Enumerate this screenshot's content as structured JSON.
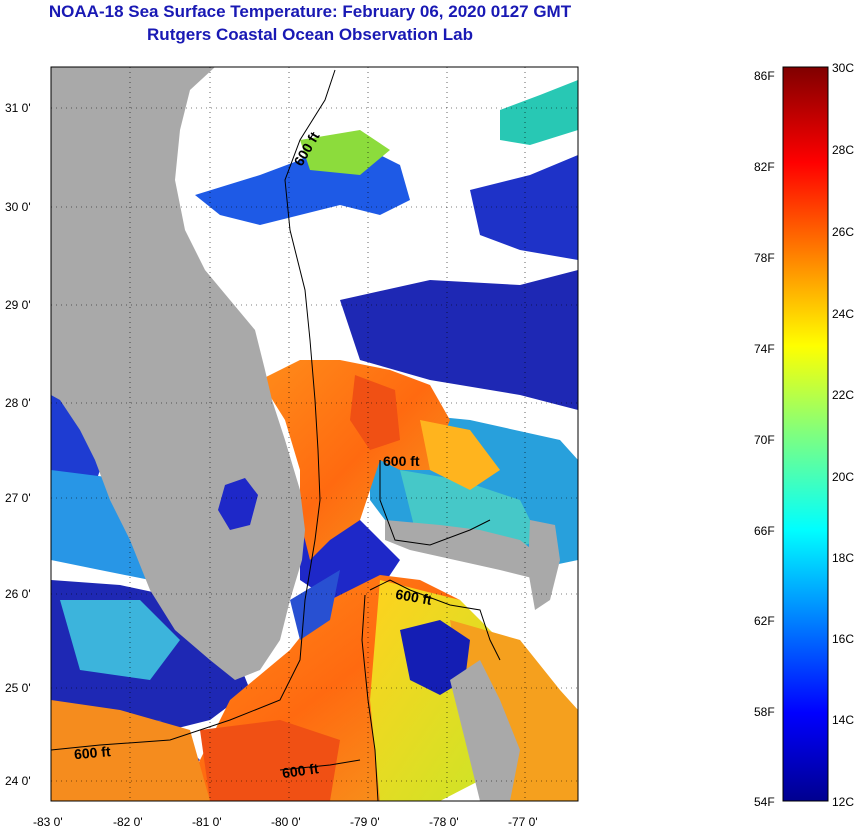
{
  "title": {
    "line1": "NOAA-18 Sea Surface Temperature:  February 06, 2020 0127 GMT",
    "line2": "Rutgers Coastal Ocean Observation Lab"
  },
  "map": {
    "lat_ticks": [
      "31 0'",
      "30 0'",
      "29 0'",
      "28 0'",
      "27 0'",
      "26 0'",
      "25 0'",
      "24 0'"
    ],
    "lon_ticks": [
      "-83 0'",
      "-82 0'",
      "-81 0'",
      "-80 0'",
      "-79 0'",
      "-78 0'",
      "-77 0'"
    ],
    "contour_labels": [
      "600 ft",
      "600 ft",
      "600 ft",
      "600 ft",
      "600 ft"
    ],
    "colors": {
      "land": "#a9a9a9",
      "cloud": "#ffffff",
      "warm": "#f07814",
      "cool": "#1e1ec8"
    }
  },
  "colorbar": {
    "fahrenheit_ticks": [
      "86F",
      "82F",
      "78F",
      "74F",
      "70F",
      "66F",
      "62F",
      "58F",
      "54F"
    ],
    "celsius_ticks": [
      "30C",
      "28C",
      "26C",
      "24C",
      "22C",
      "20C",
      "18C",
      "16C",
      "14C",
      "12C"
    ],
    "range_c": [
      12,
      30
    ],
    "range_f": [
      54,
      86
    ],
    "colormap": "jet"
  }
}
